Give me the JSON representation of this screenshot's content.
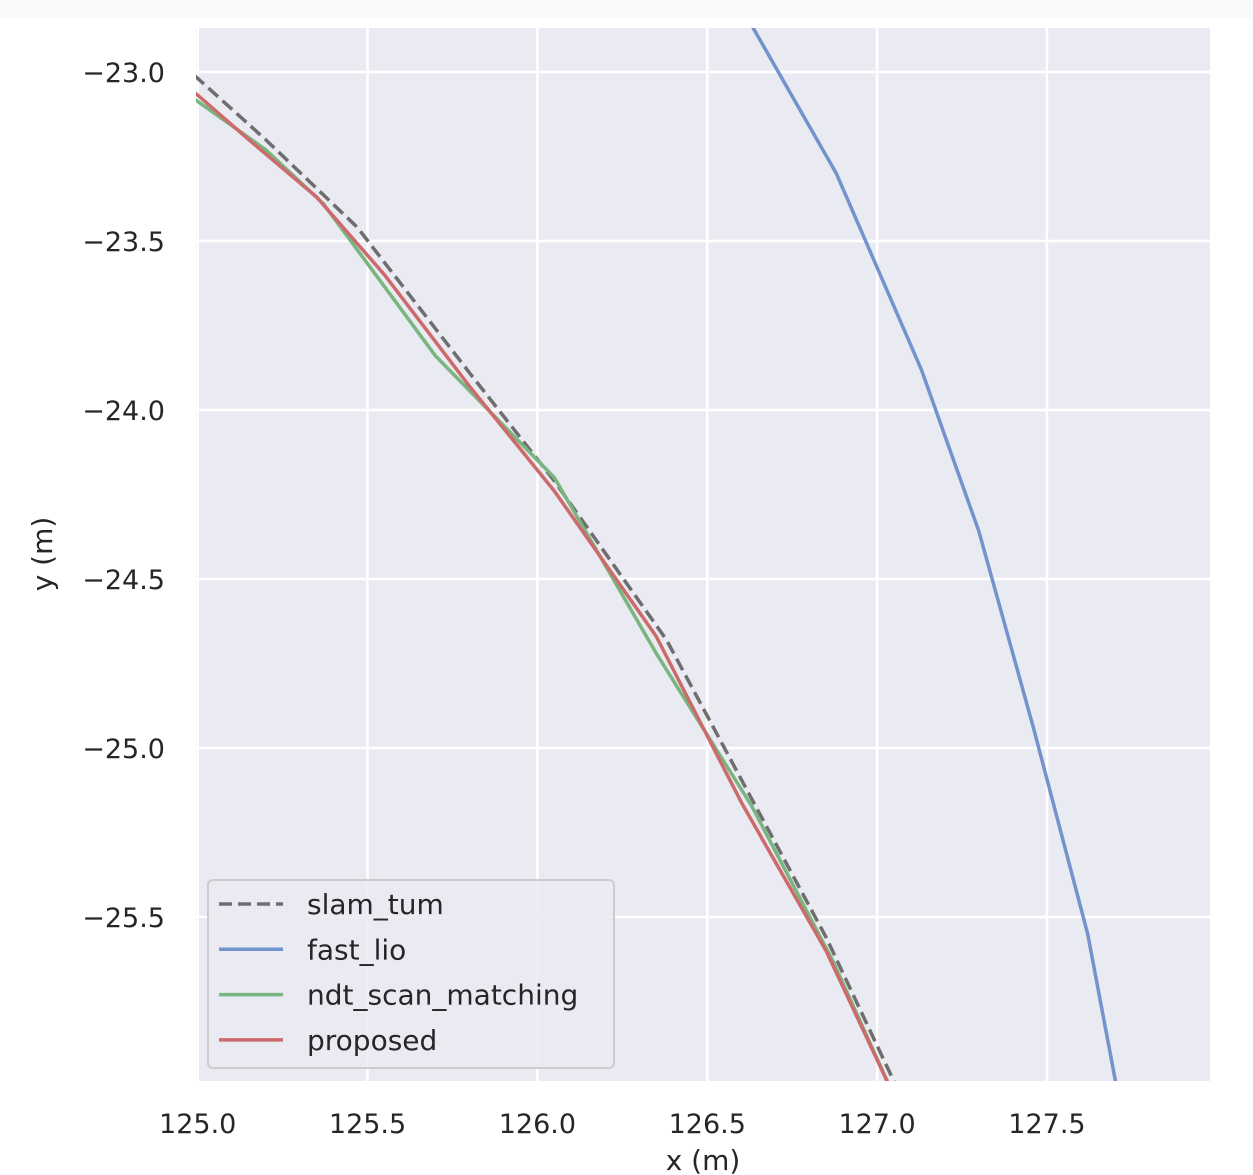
{
  "chart_data": {
    "type": "line",
    "xlabel": "x (m)",
    "ylabel": "y (m)",
    "xlim": [
      124.995,
      127.98
    ],
    "ylim": [
      -25.985,
      -22.87
    ],
    "xticks": [
      125.0,
      125.5,
      126.0,
      126.5,
      127.0,
      127.5
    ],
    "xtick_labels": [
      "125.0",
      "125.5",
      "126.0",
      "126.5",
      "127.0",
      "127.5"
    ],
    "yticks": [
      -23.0,
      -23.5,
      -24.0,
      -24.5,
      -25.0,
      -25.5
    ],
    "ytick_labels": [
      "−23.0",
      "−23.5",
      "−24.0",
      "−24.5",
      "−25.0",
      "−25.5"
    ],
    "grid": true,
    "background": "#eaeaf2",
    "legend_position": "lower-left",
    "series": [
      {
        "name": "slam_tum",
        "color": "#6e6e6e",
        "dashed": true,
        "x": [
          124.99,
          125.2,
          125.47,
          125.8,
          126.05,
          126.38,
          126.62,
          126.85,
          127.07
        ],
        "y": [
          -23.01,
          -23.2,
          -23.46,
          -23.89,
          -24.21,
          -24.68,
          -25.13,
          -25.56,
          -26.03
        ]
      },
      {
        "name": "fast_lio",
        "color": "#7293cb",
        "dashed": false,
        "x": [
          126.55,
          126.88,
          127.13,
          127.3,
          127.46,
          127.62,
          127.71
        ],
        "y": [
          -22.72,
          -23.3,
          -23.88,
          -24.36,
          -24.94,
          -25.55,
          -26.03
        ]
      },
      {
        "name": "ndt_scan_matching",
        "color": "#79b57f",
        "dashed": false,
        "x": [
          124.99,
          125.2,
          125.37,
          125.7,
          126.05,
          126.35,
          126.63,
          126.87,
          127.05
        ],
        "y": [
          -23.08,
          -23.23,
          -23.39,
          -23.84,
          -24.2,
          -24.72,
          -25.17,
          -25.63,
          -26.03
        ]
      },
      {
        "name": "proposed",
        "color": "#cd6a6b",
        "dashed": false,
        "x": [
          124.99,
          125.15,
          125.35,
          125.55,
          125.8,
          126.05,
          126.35,
          126.6,
          126.85,
          127.05
        ],
        "y": [
          -23.06,
          -23.2,
          -23.37,
          -23.6,
          -23.93,
          -24.24,
          -24.67,
          -25.16,
          -25.6,
          -26.03
        ]
      }
    ]
  }
}
